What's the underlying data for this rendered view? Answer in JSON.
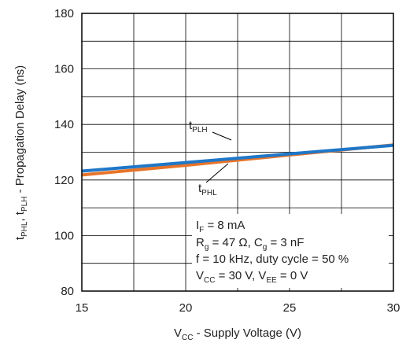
{
  "chart_data": {
    "type": "line",
    "x_min": 15,
    "x_max": 30,
    "ylim": [
      80,
      180
    ],
    "x_ticks": [
      15,
      20,
      25,
      30
    ],
    "y_ticks": [
      80,
      100,
      120,
      140,
      160,
      180
    ],
    "x_tick_labels": [
      "15",
      "20",
      "25",
      "30"
    ],
    "y_tick_labels": [
      "80",
      "100",
      "120",
      "140",
      "160",
      "180"
    ],
    "grid": true,
    "xlabel": {
      "main": "V",
      "sub": "CC",
      "rest": " - Supply Voltage (V)"
    },
    "ylabel": {
      "t1": "t",
      "s1": "PHL",
      "sep": ", ",
      "t2": "t",
      "s2": "PLH",
      "rest": " - Propagation Delay (ns)"
    },
    "series": [
      {
        "name": "tPLH",
        "color": "#1f77c8",
        "x": [
          15,
          20,
          25,
          30
        ],
        "y": [
          123.2,
          126.3,
          129.4,
          132.5
        ]
      },
      {
        "name": "tPHL",
        "color": "#e8742a",
        "x": [
          15,
          20,
          25,
          30
        ],
        "y": [
          121.8,
          125.3,
          129.0,
          132.6
        ]
      }
    ],
    "series_labels": {
      "tplh": {
        "main": "t",
        "sub": "PLH"
      },
      "tphl": {
        "main": "t",
        "sub": "PHL"
      }
    },
    "conditions": {
      "line1": {
        "a": "I",
        "a_sub": "F",
        "b": " = 8 mA"
      },
      "line2": {
        "a": "R",
        "a_sub": "g",
        "b": " = 47 Ω, C",
        "b_sub": "g",
        "c": " = 3 nF"
      },
      "line3": {
        "text": "f = 10 kHz, duty cycle = 50 %"
      },
      "line4": {
        "a": "V",
        "a_sub": "CC",
        "b": " = 30 V, V",
        "b_sub": "EE",
        "c": " = 0 V"
      }
    }
  }
}
